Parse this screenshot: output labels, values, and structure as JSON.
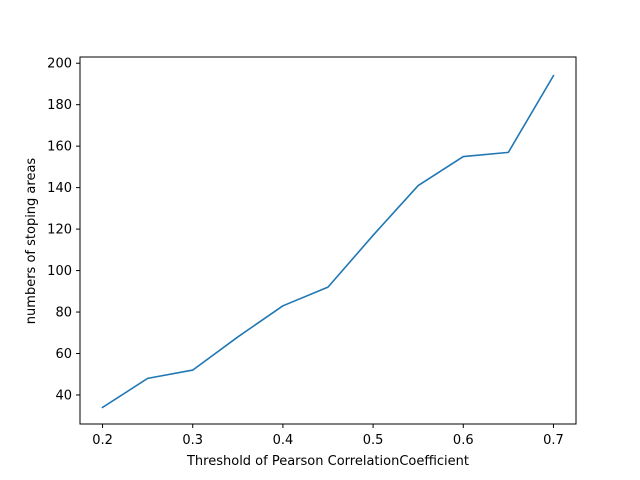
{
  "chart_data": {
    "type": "line",
    "title": "",
    "xlabel": "Threshold of Pearson CorrelationCoefficient",
    "ylabel": "numbers of stoping areas",
    "xlim": [
      0.175,
      0.725
    ],
    "ylim": [
      26,
      203
    ],
    "x_ticks": [
      0.2,
      0.3,
      0.4,
      0.5,
      0.6,
      0.7
    ],
    "x_tick_labels": [
      "0.2",
      "0.3",
      "0.4",
      "0.5",
      "0.6",
      "0.7"
    ],
    "y_ticks": [
      40,
      60,
      80,
      100,
      120,
      140,
      160,
      180,
      200
    ],
    "y_tick_labels": [
      "40",
      "60",
      "80",
      "100",
      "120",
      "140",
      "160",
      "180",
      "200"
    ],
    "grid": false,
    "series": [
      {
        "color": "#1f77b4",
        "x": [
          0.2,
          0.25,
          0.3,
          0.35,
          0.4,
          0.45,
          0.5,
          0.55,
          0.6,
          0.65,
          0.7
        ],
        "y": [
          34,
          48,
          52,
          68,
          83,
          92,
          117,
          141,
          155,
          157,
          194
        ]
      }
    ]
  }
}
